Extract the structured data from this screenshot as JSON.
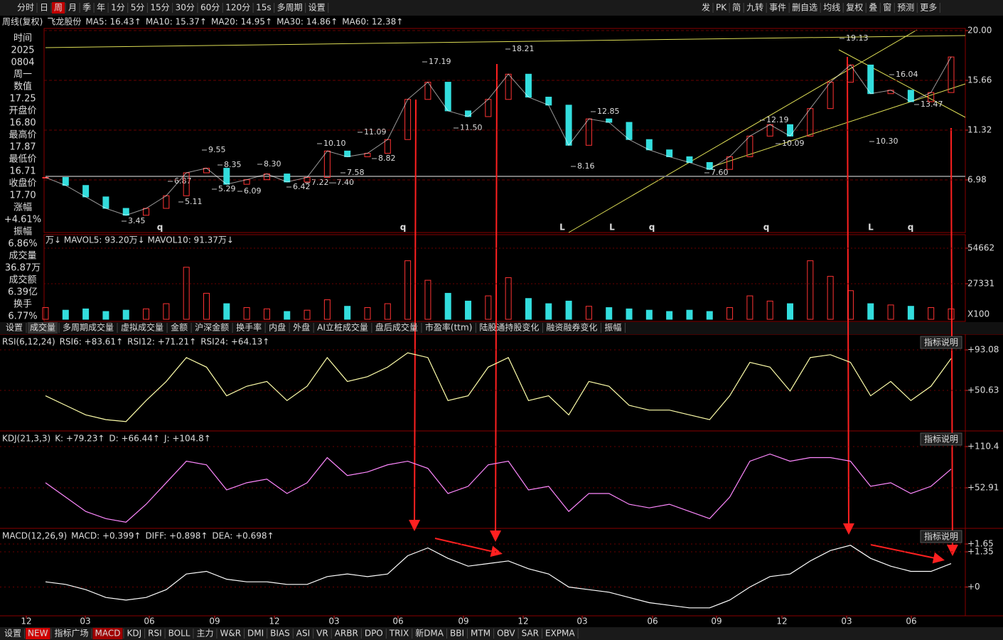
{
  "toolbar": {
    "left": [
      "分时",
      "日",
      "周",
      "月",
      "季",
      "年",
      "1分",
      "5分",
      "15分",
      "30分",
      "60分",
      "120分",
      "15s",
      "多周期",
      "设置"
    ],
    "active": "周",
    "right": [
      "发",
      "PK",
      "简",
      "九转",
      "事件",
      "删自选",
      "均线",
      "复权",
      "叠",
      "窗",
      "预测",
      "更多"
    ]
  },
  "ma_line": [
    {
      "text": "周线(复权)",
      "color": "#dddddd"
    },
    {
      "text": "飞龙股份",
      "color": "#dddddd"
    },
    {
      "text": "MA5: 16.43↑",
      "color": "#ffffff"
    },
    {
      "text": "MA10: 15.37↑",
      "color": "#ffff00"
    },
    {
      "text": "MA20: 14.95↑",
      "color": "#ff44ff"
    },
    {
      "text": "MA30: 14.86↑",
      "color": "#44ff44"
    },
    {
      "text": "MA60: 12.38↑",
      "color": "#55aaff"
    }
  ],
  "info_panel": [
    {
      "text": "时间",
      "color": "#ffffff"
    },
    {
      "text": "2025",
      "color": "#ffffff"
    },
    {
      "text": "0804",
      "color": "#ffffff"
    },
    {
      "text": "周一",
      "color": "#ffffff"
    },
    {
      "text": "数值",
      "color": "#ffffff"
    },
    {
      "text": "17.25",
      "color": "#ff3333"
    },
    {
      "text": "开盘价",
      "color": "#ffffff"
    },
    {
      "text": "16.80",
      "color": "#33dd33"
    },
    {
      "text": "最高价",
      "color": "#ffffff"
    },
    {
      "text": "17.87",
      "color": "#ff3333"
    },
    {
      "text": "最低价",
      "color": "#ffffff"
    },
    {
      "text": "16.71",
      "color": "#33dd33"
    },
    {
      "text": "收盘价",
      "color": "#ffffff"
    },
    {
      "text": "17.70",
      "color": "#ff3333"
    },
    {
      "text": "涨幅",
      "color": "#ffffff"
    },
    {
      "text": "+4.61%",
      "color": "#ff3333"
    },
    {
      "text": "振幅",
      "color": "#ffffff"
    },
    {
      "text": "6.86%",
      "color": "#33dddd"
    },
    {
      "text": "成交量",
      "color": "#ffffff"
    },
    {
      "text": "36.87万",
      "color": "#33dddd"
    },
    {
      "text": "成交额",
      "color": "#ffffff"
    },
    {
      "text": "6.39亿",
      "color": "#33dddd"
    },
    {
      "text": "换手",
      "color": "#ffffff"
    },
    {
      "text": "6.77%",
      "color": "#33dddd"
    }
  ],
  "price_panel": {
    "yticks": [
      {
        "value": 20,
        "label": "20.00"
      },
      {
        "value": 15.66,
        "label": "15.66"
      },
      {
        "value": 11.32,
        "label": "11.32"
      },
      {
        "value": 6.98,
        "label": "6.98"
      }
    ],
    "closes": [
      7.2,
      6.5,
      5.5,
      4.5,
      3.9,
      4.5,
      5.6,
      7.6,
      8.0,
      6.6,
      7.0,
      7.5,
      6.8,
      7.2,
      9.5,
      9.0,
      9.3,
      10.5,
      14.0,
      15.5,
      13.0,
      12.5,
      14.0,
      16.2,
      14.2,
      13.5,
      10.0,
      12.3,
      12.0,
      10.5,
      9.6,
      9.0,
      8.5,
      7.9,
      9.0,
      10.8,
      11.8,
      10.8,
      13.2,
      15.5,
      17.0,
      14.5,
      14.8,
      13.8,
      14.6,
      17.7
    ],
    "annotations": [
      "3.45",
      "5.11",
      "6.87",
      "9.55",
      "8.35",
      "5.29",
      "6.09",
      "8.30",
      "6.42",
      "7.22—7.40",
      "10.10",
      "7.58",
      "11.09",
      "8.82",
      "17.19",
      "11.50",
      "18.21",
      "12.85",
      "8.16",
      "7.60",
      "10.09",
      "12.19",
      "19.13",
      "16.04",
      "13.47",
      "10.30"
    ],
    "markers": [
      "q",
      "q",
      "L",
      "L",
      "q",
      "q",
      "L",
      "q"
    ]
  },
  "volume_panel": {
    "legend": "万↓ MAVOL5: 93.20万↓ MAVOL10: 91.37万↓",
    "yticks": [
      54662,
      27331
    ],
    "unit": "X100",
    "values": [
      9000,
      7000,
      8000,
      6000,
      7000,
      8000,
      12000,
      40000,
      20000,
      12000,
      9000,
      8000,
      6000,
      7000,
      15000,
      10000,
      9000,
      12000,
      45000,
      30000,
      20000,
      14000,
      18000,
      32000,
      16000,
      12000,
      14000,
      10000,
      9000,
      8000,
      7000,
      6000,
      7000,
      6000,
      9000,
      18000,
      14000,
      12000,
      45000,
      33000,
      22000,
      12000,
      11000,
      10000,
      9000,
      8000
    ]
  },
  "tabs": [
    "设置",
    "成交量",
    "多周期成交量",
    "虚拟成交量",
    "金额",
    "沪深金额",
    "换手率",
    "内盘",
    "外盘",
    "AI立桩成交量",
    "盘后成交量",
    "市盈率(ttm)",
    "陆股通持股变化",
    "融资融券变化",
    "振幅"
  ],
  "active_tab": "成交量",
  "rsi_panel": {
    "legend": [
      {
        "text": "RSI(6,12,24)",
        "color": "#dddddd"
      },
      {
        "text": "RSI6: +83.61↑",
        "color": "#ffffff"
      },
      {
        "text": "RSI12: +71.21↑",
        "color": "#44cc44"
      },
      {
        "text": "RSI24: +64.13↑",
        "color": "#5577ff"
      }
    ],
    "button": "指标说明",
    "yticks": [
      {
        "value": 93.08,
        "label": "+93.08"
      },
      {
        "value": 50.63,
        "label": "+50.63"
      }
    ],
    "values": [
      45,
      35,
      25,
      20,
      18,
      40,
      60,
      85,
      75,
      45,
      55,
      60,
      40,
      55,
      85,
      60,
      65,
      75,
      90,
      85,
      40,
      45,
      75,
      85,
      40,
      45,
      25,
      60,
      55,
      35,
      30,
      30,
      25,
      20,
      45,
      80,
      75,
      50,
      85,
      88,
      80,
      45,
      60,
      40,
      55,
      84
    ],
    "color": "#ffffaa"
  },
  "kdj_panel": {
    "legend": [
      {
        "text": "KDJ(21,3,3)",
        "color": "#dddddd"
      },
      {
        "text": "K: +79.23↑",
        "color": "#ffffff"
      },
      {
        "text": "D: +66.44↑",
        "color": "#ffff00"
      },
      {
        "text": "J: +104.8↑",
        "color": "#ff44ff"
      }
    ],
    "button": "指标说明",
    "yticks": [
      {
        "value": 110.4,
        "label": "+110.4"
      },
      {
        "value": 52.91,
        "label": "+52.91"
      }
    ],
    "values": [
      60,
      40,
      20,
      10,
      5,
      30,
      60,
      90,
      85,
      50,
      60,
      65,
      45,
      60,
      95,
      70,
      75,
      85,
      90,
      80,
      45,
      55,
      85,
      90,
      50,
      55,
      20,
      45,
      45,
      30,
      25,
      30,
      20,
      10,
      40,
      90,
      100,
      90,
      95,
      95,
      90,
      55,
      60,
      45,
      55,
      79
    ],
    "color": "#ff88ff"
  },
  "macd_panel": {
    "legend": [
      {
        "text": "MACD(12,26,9)",
        "color": "#dddddd"
      },
      {
        "text": "MACD: +0.399↑",
        "color": "#ff3333"
      },
      {
        "text": "DIFF: +0.898↑",
        "color": "#ffffff"
      },
      {
        "text": "DEA: +0.698↑",
        "color": "#ffff00"
      }
    ],
    "button": "指标说明",
    "yticks": [
      {
        "value": 1.65,
        "label": "+1.65"
      },
      {
        "value": 1.35,
        "label": "+1.35"
      },
      {
        "value": 0,
        "label": "+0"
      }
    ],
    "values": [
      0.2,
      0.1,
      -0.1,
      -0.4,
      -0.5,
      -0.4,
      -0.1,
      0.5,
      0.6,
      0.3,
      0.2,
      0.2,
      0.1,
      0.1,
      0.4,
      0.5,
      0.4,
      0.5,
      1.2,
      1.5,
      1.1,
      0.8,
      0.9,
      1.0,
      0.7,
      0.5,
      0.0,
      -0.1,
      -0.2,
      -0.4,
      -0.6,
      -0.7,
      -0.8,
      -0.8,
      -0.5,
      0.0,
      0.4,
      0.5,
      1.0,
      1.4,
      1.6,
      1.1,
      0.8,
      0.6,
      0.6,
      0.898
    ],
    "color": "#ffffff"
  },
  "x_labels": [
    "12",
    "03",
    "06",
    "09",
    "12",
    "03",
    "06",
    "09",
    "12",
    "03",
    "06",
    "09",
    "12",
    "03",
    "06"
  ],
  "bottom_tabs": [
    "设置",
    "NEW",
    "指标广场",
    "MACD",
    "KDJ",
    "RSI",
    "BOLL",
    "主力",
    "W&R",
    "DMI",
    "BIAS",
    "ASI",
    "VR",
    "ARBR",
    "DPO",
    "TRIX",
    "新DMA",
    "BBI",
    "MTM",
    "OBV",
    "SAR",
    "EXPMA"
  ],
  "active_bottom": "MACD"
}
